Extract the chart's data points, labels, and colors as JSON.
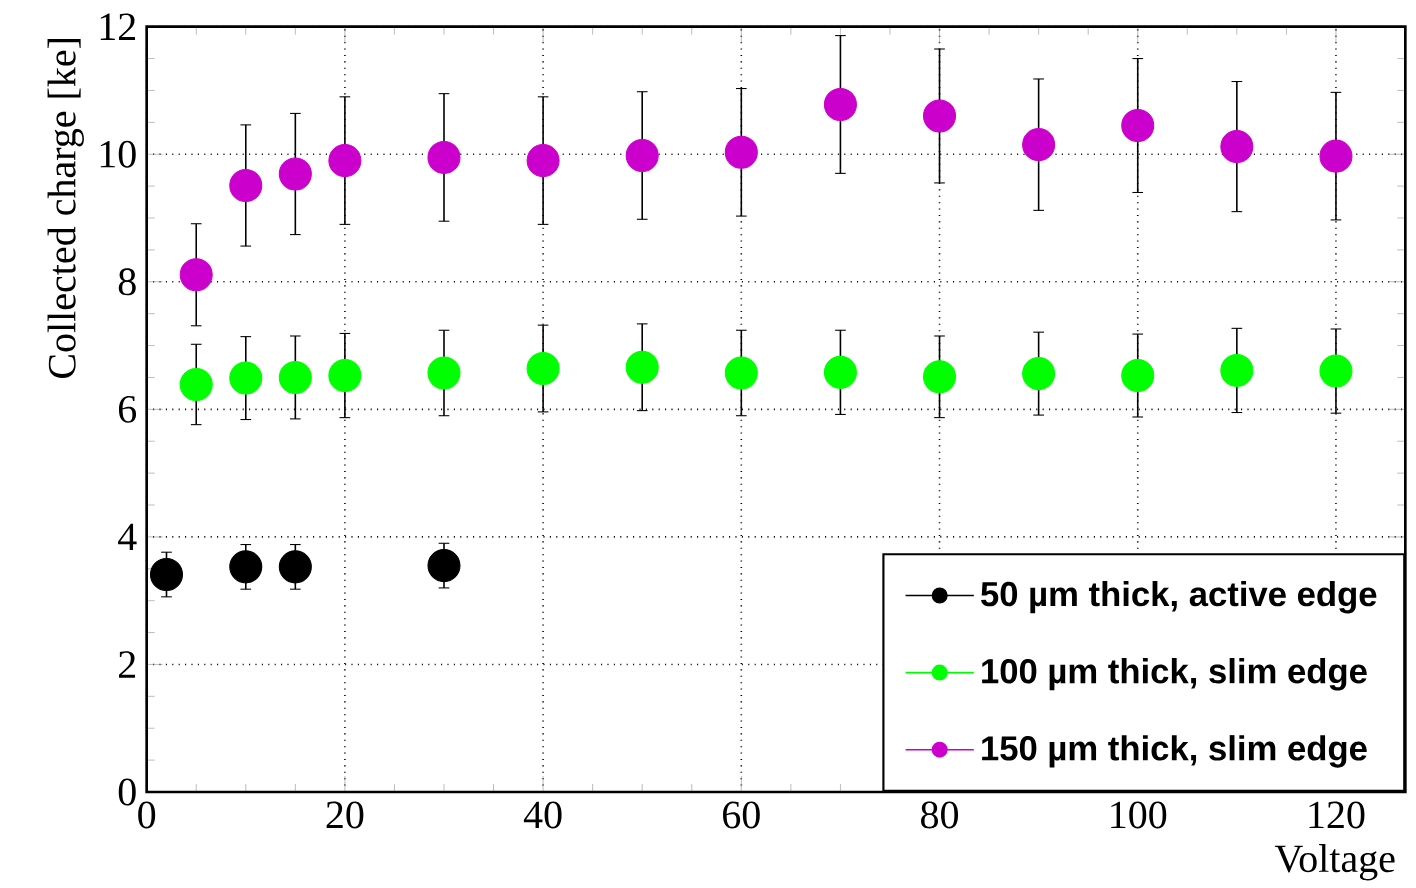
{
  "chart_data": {
    "type": "scatter",
    "xlabel": "Voltage",
    "ylabel": "Collected charge [ke]",
    "xlim": [
      0,
      127
    ],
    "ylim": [
      0,
      12
    ],
    "xticks": [
      0,
      20,
      40,
      60,
      80,
      100,
      120
    ],
    "yticks": [
      0,
      2,
      4,
      6,
      8,
      10,
      12
    ],
    "grid": true,
    "legend": "bottom right",
    "marker": "circle",
    "series": [
      {
        "name": "50 µm thick, active edge",
        "color": "#000000",
        "x": [
          2,
          10,
          15,
          30
        ],
        "values": [
          3.41,
          3.53,
          3.53,
          3.55
        ],
        "errors": [
          0.35,
          0.35,
          0.35,
          0.35
        ]
      },
      {
        "name": "100 µm thick, slim edge",
        "color": "#00ff00",
        "x": [
          5,
          10,
          15,
          20,
          30,
          40,
          50,
          60,
          70,
          80,
          90,
          100,
          110,
          120
        ],
        "values": [
          6.39,
          6.49,
          6.5,
          6.53,
          6.57,
          6.64,
          6.66,
          6.57,
          6.58,
          6.51,
          6.56,
          6.53,
          6.61,
          6.6
        ],
        "errors": [
          0.63,
          0.65,
          0.65,
          0.66,
          0.67,
          0.68,
          0.68,
          0.67,
          0.66,
          0.64,
          0.65,
          0.65,
          0.66,
          0.66
        ]
      },
      {
        "name": "150 µm thick, slim edge",
        "color": "#cc00cc",
        "x": [
          5,
          10,
          15,
          20,
          30,
          40,
          50,
          60,
          70,
          80,
          90,
          100,
          110,
          120
        ],
        "values": [
          8.11,
          9.51,
          9.69,
          9.9,
          9.95,
          9.9,
          9.98,
          10.03,
          10.78,
          10.6,
          10.15,
          10.45,
          10.12,
          9.97
        ],
        "errors": [
          0.8,
          0.95,
          0.95,
          1.0,
          1.0,
          1.0,
          1.0,
          1.0,
          1.08,
          1.05,
          1.03,
          1.05,
          1.02,
          1.0
        ]
      }
    ]
  }
}
